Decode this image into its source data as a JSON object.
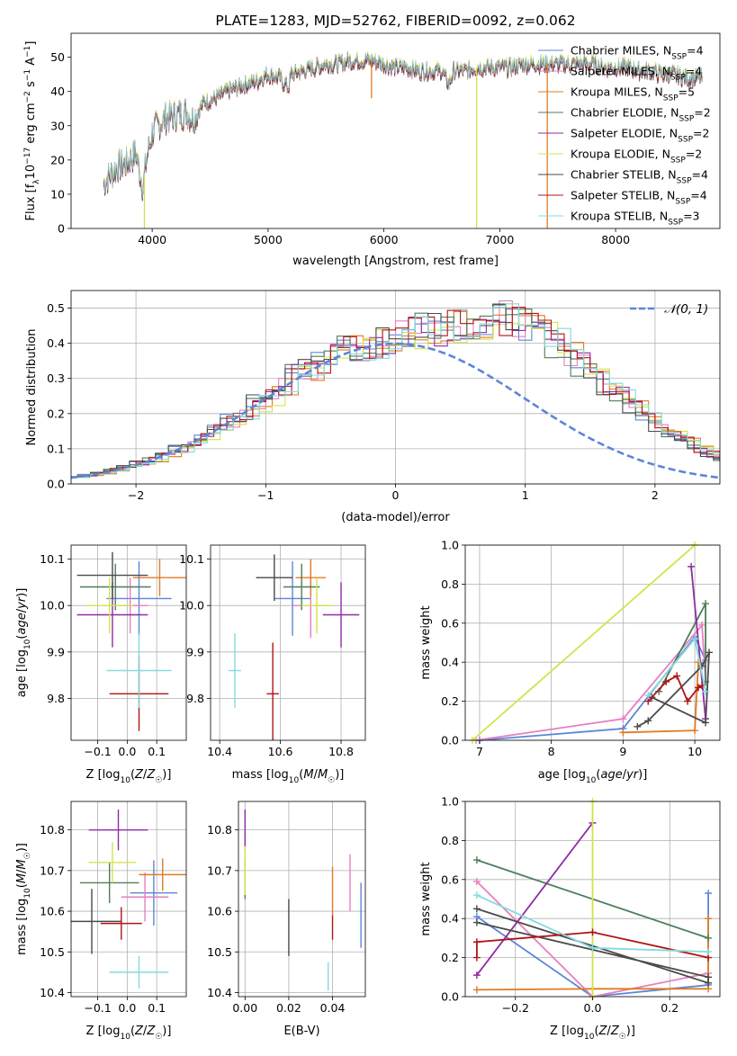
{
  "colors": {
    "Chabrier MILES": "#5a86d8",
    "Salpeter MILES": "#e67fbf",
    "Kroupa MILES": "#e07b23",
    "Chabrier ELODIE": "#4f7d5a",
    "Salpeter ELODIE": "#8f2ba3",
    "Kroupa ELODIE": "#d4e34a",
    "Chabrier STELIB": "#4a4a4a",
    "Salpeter STELIB": "#b01414",
    "Kroupa STELIB": "#84dae0"
  },
  "chart_data": [
    {
      "id": "spectrum",
      "type": "line",
      "title": "PLATE=1283, MJD=52762, FIBERID=0092, z=0.062",
      "xlabel": "wavelength [Angstrom, rest frame]",
      "ylabel": "Flux [f_λ 10^-17 erg cm^-2 s^-1 A^-1]",
      "xlim": [
        3300,
        8900
      ],
      "ylim": [
        0,
        57
      ],
      "xticks": [
        4000,
        5000,
        6000,
        7000,
        8000
      ],
      "yticks": [
        0,
        10,
        20,
        30,
        40,
        50
      ],
      "grid": false,
      "legend_position": "top-right",
      "x": [
        3580,
        3620,
        3700,
        3780,
        3860,
        3920,
        3950,
        4000,
        4100,
        4200,
        4300,
        4350,
        4450,
        4550,
        4650,
        4800,
        4900,
        5000,
        5100,
        5175,
        5200,
        5300,
        5400,
        5500,
        5600,
        5700,
        5800,
        5900,
        6000,
        6100,
        6200,
        6300,
        6400,
        6500,
        6560,
        6600,
        6700,
        6800,
        6900,
        7000,
        7100,
        7200,
        7300,
        7400,
        7500,
        7600,
        7700,
        7800,
        7900,
        8000,
        8100,
        8200,
        8300,
        8400,
        8500,
        8600,
        8750
      ],
      "y": [
        13,
        15,
        18,
        19,
        22,
        12,
        20,
        28,
        32,
        33,
        34,
        32,
        37,
        38,
        40,
        42,
        43,
        45,
        44,
        41,
        45,
        46,
        47,
        48,
        48,
        49,
        49,
        49,
        48,
        47,
        47,
        46,
        46,
        46,
        42,
        46,
        46,
        47,
        47,
        47,
        47,
        48,
        48,
        48,
        48,
        48,
        48,
        48,
        47,
        47,
        47,
        46,
        46,
        45,
        45,
        44,
        44
      ],
      "dips": [
        {
          "x": 3933,
          "y": 0,
          "series": "Kroupa ELODIE"
        },
        {
          "x": 5893,
          "y": 38,
          "series": "Kroupa MILES"
        },
        {
          "x": 6800,
          "y": 0,
          "series": "Kroupa ELODIE"
        },
        {
          "x": 7410,
          "y": 0,
          "series": "Kroupa MILES"
        }
      ],
      "series": [
        {
          "name": "Chabrier MILES, N_SSP=4",
          "label_main": "Chabrier MILES, N",
          "label_sub": "SSP",
          "label_end": "=4",
          "offset": 0.2
        },
        {
          "name": "Salpeter MILES, N_SSP=4",
          "label_main": "Salpeter MILES, N",
          "label_sub": "SSP",
          "label_end": "=4",
          "offset": 0.4
        },
        {
          "name": "Kroupa MILES, N_SSP=5",
          "label_main": "Kroupa MILES, N",
          "label_sub": "SSP",
          "label_end": "=5",
          "offset": -0.3
        },
        {
          "name": "Chabrier ELODIE, N_SSP=2",
          "label_main": "Chabrier ELODIE, N",
          "label_sub": "SSP",
          "label_end": "=2",
          "offset": 0.1
        },
        {
          "name": "Salpeter ELODIE, N_SSP=2",
          "label_main": "Salpeter ELODIE, N",
          "label_sub": "SSP",
          "label_end": "=2",
          "offset": -0.2
        },
        {
          "name": "Kroupa ELODIE, N_SSP=2",
          "label_main": "Kroupa ELODIE, N",
          "label_sub": "SSP",
          "label_end": "=2",
          "offset": 0.5
        },
        {
          "name": "Chabrier STELIB, N_SSP=4",
          "label_main": "Chabrier STELIB, N",
          "label_sub": "SSP",
          "label_end": "=4",
          "offset": -0.5
        },
        {
          "name": "Salpeter STELIB, N_SSP=4",
          "label_main": "Salpeter STELIB, N",
          "label_sub": "SSP",
          "label_end": "=4",
          "offset": 0.0
        },
        {
          "name": "Kroupa STELIB, N_SSP=3",
          "label_main": "Kroupa STELIB, N",
          "label_sub": "SSP",
          "label_end": "=3",
          "offset": 0.3
        }
      ]
    },
    {
      "id": "residuals",
      "type": "histogram",
      "xlabel": "(data-model)/error",
      "ylabel": "Normed distribution",
      "xlim": [
        -2.5,
        2.5
      ],
      "ylim": [
        0,
        0.55
      ],
      "xticks": [
        -2,
        -1,
        0,
        1,
        2
      ],
      "yticks": [
        0.0,
        0.1,
        0.2,
        0.3,
        0.4,
        0.5
      ],
      "grid": true,
      "legend_position": "top-right",
      "legend_label": "𝒩(0, 1)",
      "bin_width": 0.1,
      "bin_start": -2.5,
      "base_values": [
        0.02,
        0.025,
        0.03,
        0.04,
        0.05,
        0.06,
        0.07,
        0.085,
        0.1,
        0.115,
        0.135,
        0.155,
        0.18,
        0.2,
        0.23,
        0.25,
        0.28,
        0.31,
        0.33,
        0.35,
        0.37,
        0.385,
        0.39,
        0.4,
        0.41,
        0.42,
        0.43,
        0.44,
        0.44,
        0.45,
        0.46,
        0.46,
        0.47,
        0.47,
        0.46,
        0.45,
        0.42,
        0.4,
        0.37,
        0.34,
        0.31,
        0.28,
        0.25,
        0.22,
        0.19,
        0.165,
        0.14,
        0.12,
        0.1,
        0.085,
        0.07
      ],
      "normal_curve": {
        "mean": 0,
        "std": 1,
        "label": "𝒩(0, 1)"
      }
    },
    {
      "id": "age-vs-Z",
      "type": "errorbar",
      "xlabel": "Z [log10(Z/Z☉)]",
      "ylabel": "age [log10(age/yr)]",
      "xlim": [
        -0.19,
        0.2
      ],
      "ylim": [
        9.71,
        10.13
      ],
      "xticks": [
        -0.1,
        0.0,
        0.1
      ],
      "yticks": [
        9.8,
        9.9,
        10.0,
        10.1
      ],
      "grid": true,
      "points": [
        {
          "series": "Chabrier MILES",
          "x": 0.04,
          "xerr": 0.11,
          "y": 10.015,
          "yerr": 0.08
        },
        {
          "series": "Salpeter MILES",
          "x": 0.01,
          "xerr": 0.06,
          "y": 10.0,
          "yerr": 0.06
        },
        {
          "series": "Kroupa MILES",
          "x": 0.11,
          "xerr": 0.09,
          "y": 10.06,
          "yerr": 0.04
        },
        {
          "series": "Chabrier ELODIE",
          "x": -0.04,
          "xerr": 0.12,
          "y": 10.04,
          "yerr": 0.05
        },
        {
          "series": "Salpeter ELODIE",
          "x": -0.05,
          "xerr": 0.12,
          "y": 9.98,
          "yerr": 0.07
        },
        {
          "series": "Kroupa ELODIE",
          "x": -0.06,
          "xerr": 0.08,
          "y": 10.0,
          "yerr": 0.06
        },
        {
          "series": "Chabrier STELIB",
          "x": -0.05,
          "xerr": 0.12,
          "y": 10.065,
          "yerr": 0.05
        },
        {
          "series": "Salpeter STELIB",
          "x": 0.04,
          "xerr": 0.1,
          "y": 9.81,
          "yerr": 0.08
        },
        {
          "series": "Kroupa STELIB",
          "x": 0.04,
          "xerr": 0.11,
          "y": 9.86,
          "yerr": 0.08
        }
      ]
    },
    {
      "id": "age-vs-mass",
      "type": "errorbar",
      "xlabel": "mass [log10(M/M☉)]",
      "xlim": [
        10.37,
        10.88
      ],
      "ylim": [
        9.71,
        10.13
      ],
      "xticks": [
        10.4,
        10.6,
        10.8
      ],
      "yticks": [
        9.8,
        9.9,
        10.0,
        10.1
      ],
      "grid": true,
      "points": [
        {
          "series": "Chabrier MILES",
          "x": 10.64,
          "xerr": 0.06,
          "y": 10.015,
          "yerr": 0.08
        },
        {
          "series": "Salpeter MILES",
          "x": 10.7,
          "xerr": 0.06,
          "y": 10.0,
          "yerr": 0.07
        },
        {
          "series": "Kroupa MILES",
          "x": 10.7,
          "xerr": 0.05,
          "y": 10.06,
          "yerr": 0.04
        },
        {
          "series": "Chabrier ELODIE",
          "x": 10.67,
          "xerr": 0.06,
          "y": 10.04,
          "yerr": 0.05
        },
        {
          "series": "Salpeter ELODIE",
          "x": 10.8,
          "xerr": 0.06,
          "y": 9.98,
          "yerr": 0.07
        },
        {
          "series": "Kroupa ELODIE",
          "x": 10.72,
          "xerr": 0.05,
          "y": 10.0,
          "yerr": 0.06
        },
        {
          "series": "Chabrier STELIB",
          "x": 10.58,
          "xerr": 0.06,
          "y": 10.06,
          "yerr": 0.05
        },
        {
          "series": "Salpeter STELIB",
          "x": 10.575,
          "xerr": 0.02,
          "y": 9.81,
          "yerr": 0.11
        },
        {
          "series": "Kroupa STELIB",
          "x": 10.45,
          "xerr": 0.02,
          "y": 9.86,
          "yerr": 0.08
        }
      ]
    },
    {
      "id": "weight-vs-age",
      "type": "line",
      "xlabel": "age [log10(age/yr)]",
      "ylabel": "mass weight",
      "xlim": [
        6.8,
        10.35
      ],
      "ylim": [
        0,
        1.0
      ],
      "xticks": [
        7,
        8,
        9,
        10
      ],
      "yticks": [
        0.0,
        0.2,
        0.4,
        0.6,
        0.8,
        1.0
      ],
      "grid": true,
      "series": [
        {
          "name": "Chabrier MILES",
          "points": [
            [
              7.0,
              0.0
            ],
            [
              9.0,
              0.06
            ],
            [
              10.0,
              0.53
            ],
            [
              10.15,
              0.41
            ]
          ]
        },
        {
          "name": "Salpeter MILES",
          "points": [
            [
              6.95,
              0.0
            ],
            [
              9.0,
              0.11
            ],
            [
              10.1,
              0.59
            ],
            [
              10.15,
              0.3
            ]
          ]
        },
        {
          "name": "Kroupa MILES",
          "points": [
            [
              9.0,
              0.04
            ],
            [
              10.0,
              0.05
            ],
            [
              10.05,
              0.4
            ]
          ]
        },
        {
          "name": "Chabrier ELODIE",
          "points": [
            [
              9.5,
              0.25
            ],
            [
              10.15,
              0.7
            ],
            [
              10.15,
              0.3
            ]
          ]
        },
        {
          "name": "Salpeter ELODIE",
          "points": [
            [
              9.95,
              0.89
            ],
            [
              10.15,
              0.11
            ]
          ]
        },
        {
          "name": "Kroupa ELODIE",
          "points": [
            [
              6.9,
              0.0
            ],
            [
              10.0,
              1.0
            ]
          ]
        },
        {
          "name": "Chabrier STELIB",
          "points": [
            [
              9.2,
              0.07
            ],
            [
              9.35,
              0.1
            ],
            [
              10.1,
              0.38
            ],
            [
              10.2,
              0.45
            ],
            [
              10.15,
              0.09
            ],
            [
              9.4,
              0.22
            ]
          ]
        },
        {
          "name": "Salpeter STELIB",
          "points": [
            [
              9.35,
              0.2
            ],
            [
              9.6,
              0.3
            ],
            [
              9.75,
              0.33
            ],
            [
              9.9,
              0.2
            ],
            [
              10.05,
              0.27
            ],
            [
              10.1,
              0.28
            ]
          ]
        },
        {
          "name": "Kroupa STELIB",
          "points": [
            [
              9.35,
              0.23
            ],
            [
              10.0,
              0.52
            ],
            [
              10.15,
              0.25
            ]
          ]
        }
      ]
    },
    {
      "id": "mass-vs-Z",
      "type": "errorbar",
      "xlabel": "Z [log10(Z/Z☉)]",
      "ylabel": "mass [log10(M/M☉)]",
      "xlim": [
        -0.19,
        0.2
      ],
      "ylim": [
        10.39,
        10.87
      ],
      "xticks": [
        -0.1,
        0.0,
        0.1
      ],
      "yticks": [
        10.4,
        10.5,
        10.6,
        10.7,
        10.8
      ],
      "grid": true,
      "points": [
        {
          "series": "Chabrier MILES",
          "x": 0.09,
          "xerr": 0.08,
          "y": 10.645,
          "yerr": 0.08
        },
        {
          "series": "Salpeter MILES",
          "x": 0.06,
          "xerr": 0.08,
          "y": 10.635,
          "yerr": 0.06
        },
        {
          "series": "Kroupa MILES",
          "x": 0.12,
          "xerr": 0.08,
          "y": 10.69,
          "yerr": 0.04
        },
        {
          "series": "Chabrier ELODIE",
          "x": -0.06,
          "xerr": 0.1,
          "y": 10.67,
          "yerr": 0.05
        },
        {
          "series": "Salpeter ELODIE",
          "x": -0.03,
          "xerr": 0.1,
          "y": 10.8,
          "yerr": 0.05
        },
        {
          "series": "Kroupa ELODIE",
          "x": -0.05,
          "xerr": 0.08,
          "y": 10.72,
          "yerr": 0.05
        },
        {
          "series": "Chabrier STELIB",
          "x": -0.12,
          "xerr": 0.1,
          "y": 10.575,
          "yerr": 0.08
        },
        {
          "series": "Salpeter STELIB",
          "x": -0.02,
          "xerr": 0.07,
          "y": 10.57,
          "yerr": 0.04
        },
        {
          "series": "Kroupa STELIB",
          "x": 0.04,
          "xerr": 0.1,
          "y": 10.45,
          "yerr": 0.04
        }
      ]
    },
    {
      "id": "mass-vs-ebv",
      "type": "errorbar",
      "xlabel": "E(B-V)",
      "xlim": [
        -0.003,
        0.055
      ],
      "ylim": [
        10.39,
        10.87
      ],
      "xticks": [
        0.0,
        0.02,
        0.04
      ],
      "yticks": [
        10.4,
        10.5,
        10.6,
        10.7,
        10.8
      ],
      "xticklabels": [
        "0.00",
        "0.02",
        "0.04"
      ],
      "grid": true,
      "points": [
        {
          "series": "Chabrier MILES",
          "x": 0.053,
          "y": 10.59,
          "yerr": 0.08
        },
        {
          "series": "Salpeter MILES",
          "x": 0.048,
          "y": 10.67,
          "yerr": 0.07
        },
        {
          "series": "Kroupa MILES",
          "x": 0.04,
          "y": 10.65,
          "yerr": 0.06
        },
        {
          "series": "Chabrier ELODIE",
          "x": 0.0,
          "y": 10.68,
          "yerr": 0.05
        },
        {
          "series": "Salpeter ELODIE",
          "x": 0.0,
          "y": 10.8,
          "yerr": 0.05
        },
        {
          "series": "Kroupa ELODIE",
          "x": 0.0,
          "y": 10.7,
          "yerr": 0.06
        },
        {
          "series": "Chabrier STELIB",
          "x": 0.02,
          "y": 10.56,
          "yerr": 0.07
        },
        {
          "series": "Salpeter STELIB",
          "x": 0.04,
          "y": 10.56,
          "yerr": 0.03
        },
        {
          "series": "Kroupa STELIB",
          "x": 0.038,
          "y": 10.44,
          "yerr": 0.035
        }
      ]
    },
    {
      "id": "weight-vs-Z",
      "type": "line",
      "xlabel": "Z [log10(Z/Z☉)]",
      "ylabel": "mass weight",
      "xlim": [
        -0.33,
        0.33
      ],
      "ylim": [
        0,
        1.0
      ],
      "xticks": [
        -0.2,
        0.0,
        0.2
      ],
      "yticks": [
        0.0,
        0.2,
        0.4,
        0.6,
        0.8,
        1.0
      ],
      "grid": true,
      "series": [
        {
          "name": "Chabrier MILES",
          "points": [
            [
              -0.3,
              0.41
            ],
            [
              0.0,
              0.0
            ],
            [
              0.3,
              0.06
            ],
            [
              0.3,
              0.53
            ]
          ]
        },
        {
          "name": "Salpeter MILES",
          "points": [
            [
              -0.3,
              0.59
            ],
            [
              0.0,
              0.0
            ],
            [
              0.3,
              0.12
            ]
          ]
        },
        {
          "name": "Kroupa MILES",
          "points": [
            [
              -0.3,
              0.035
            ],
            [
              0.0,
              0.04
            ],
            [
              0.3,
              0.04
            ],
            [
              0.3,
              0.4
            ]
          ]
        },
        {
          "name": "Chabrier ELODIE",
          "points": [
            [
              -0.3,
              0.7
            ],
            [
              0.3,
              0.3
            ]
          ]
        },
        {
          "name": "Salpeter ELODIE",
          "points": [
            [
              -0.3,
              0.11
            ],
            [
              0.0,
              0.89
            ]
          ]
        },
        {
          "name": "Kroupa ELODIE",
          "points": [
            [
              0.0,
              0.0
            ],
            [
              0.0,
              1.0
            ]
          ]
        },
        {
          "name": "Chabrier STELIB",
          "points": [
            [
              -0.3,
              0.45
            ],
            [
              0.3,
              0.07
            ],
            [
              0.3,
              0.1
            ],
            [
              -0.3,
              0.38
            ]
          ]
        },
        {
          "name": "Salpeter STELIB",
          "points": [
            [
              -0.3,
              0.2
            ],
            [
              -0.3,
              0.28
            ],
            [
              0.0,
              0.33
            ],
            [
              0.3,
              0.2
            ]
          ]
        },
        {
          "name": "Kroupa STELIB",
          "points": [
            [
              -0.3,
              0.52
            ],
            [
              0.0,
              0.25
            ],
            [
              0.3,
              0.23
            ]
          ]
        }
      ]
    }
  ]
}
